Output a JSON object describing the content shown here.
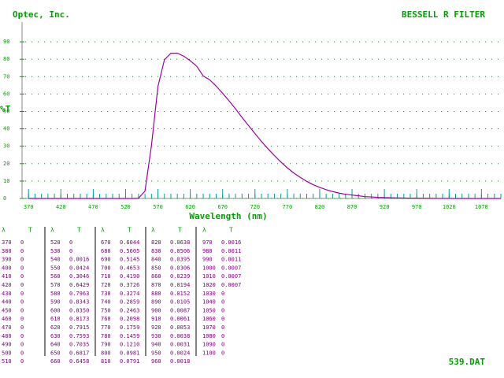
{
  "header": {
    "brand": "Optec, Inc."
  },
  "chart_data": {
    "type": "line",
    "title": "BESSELL R FILTER",
    "xlabel": "Wavelength (nm)",
    "ylabel": "%T",
    "x": [
      370,
      380,
      390,
      400,
      410,
      420,
      430,
      440,
      450,
      460,
      470,
      480,
      490,
      500,
      510,
      520,
      530,
      540,
      550,
      560,
      570,
      580,
      590,
      600,
      610,
      620,
      630,
      640,
      650,
      660,
      670,
      680,
      690,
      700,
      710,
      720,
      730,
      740,
      750,
      760,
      770,
      780,
      790,
      800,
      810,
      820,
      830,
      840,
      850,
      860,
      870,
      880,
      890,
      900,
      910,
      920,
      930,
      940,
      950,
      960,
      970,
      980,
      990,
      1000,
      1010,
      1020,
      1030,
      1040,
      1050,
      1060,
      1070,
      1080,
      1090,
      1100
    ],
    "series": [
      {
        "color": "#a000a0",
        "values": [
          0,
          0,
          0,
          0,
          0,
          0,
          0,
          0,
          0,
          0,
          0,
          0,
          0,
          0,
          0,
          0,
          0,
          0.16,
          4.24,
          30.46,
          64.29,
          79.63,
          83.43,
          83.5,
          81.73,
          79.15,
          75.93,
          70.35,
          68.17,
          64.58,
          60.44,
          56.05,
          51.45,
          46.53,
          41.9,
          37.26,
          32.74,
          28.59,
          24.63,
          20.98,
          17.59,
          14.59,
          12.1,
          9.81,
          7.91,
          6.38,
          5.06,
          3.95,
          3.06,
          2.39,
          1.94,
          1.52,
          1.05,
          0.87,
          0.61,
          0.53,
          0.38,
          0.31,
          0.24,
          0.18,
          0.16,
          0.11,
          0.11,
          0.07,
          0.07,
          0.07,
          0,
          0,
          0,
          0,
          0,
          0,
          0,
          0
        ]
      }
    ],
    "xlim": [
      360,
      1100
    ],
    "xticks": [
      370,
      420,
      470,
      520,
      570,
      620,
      670,
      720,
      770,
      820,
      870,
      920,
      970,
      1020,
      1070
    ],
    "ylim": [
      0,
      100
    ],
    "yticks": [
      0,
      10,
      20,
      30,
      40,
      50,
      60,
      70,
      80,
      90
    ],
    "grid": true
  },
  "table": {
    "header": [
      "λ",
      "T"
    ],
    "groups": [
      [
        [
          "370",
          "0"
        ],
        [
          "380",
          "0"
        ],
        [
          "390",
          "0"
        ],
        [
          "400",
          "0"
        ],
        [
          "410",
          "0"
        ],
        [
          "420",
          "0"
        ],
        [
          "430",
          "0"
        ],
        [
          "440",
          "0"
        ],
        [
          "450",
          "0"
        ],
        [
          "460",
          "0"
        ],
        [
          "470",
          "0"
        ],
        [
          "480",
          "0"
        ],
        [
          "490",
          "0"
        ],
        [
          "500",
          "0"
        ],
        [
          "510",
          "0"
        ]
      ],
      [
        [
          "520",
          "0"
        ],
        [
          "530",
          "0"
        ],
        [
          "540",
          "0.0016"
        ],
        [
          "550",
          "0.0424"
        ],
        [
          "560",
          "0.3046"
        ],
        [
          "570",
          "0.6429"
        ],
        [
          "580",
          "0.7963"
        ],
        [
          "590",
          "0.8343"
        ],
        [
          "600",
          "0.8350"
        ],
        [
          "610",
          "0.8173"
        ],
        [
          "620",
          "0.7915"
        ],
        [
          "630",
          "0.7593"
        ],
        [
          "640",
          "0.7035"
        ],
        [
          "650",
          "0.6817"
        ],
        [
          "660",
          "0.6458"
        ]
      ],
      [
        [
          "670",
          "0.6044"
        ],
        [
          "680",
          "0.5605"
        ],
        [
          "690",
          "0.5145"
        ],
        [
          "700",
          "0.4653"
        ],
        [
          "710",
          "0.4190"
        ],
        [
          "720",
          "0.3726"
        ],
        [
          "730",
          "0.3274"
        ],
        [
          "740",
          "0.2859"
        ],
        [
          "750",
          "0.2463"
        ],
        [
          "760",
          "0.2098"
        ],
        [
          "770",
          "0.1759"
        ],
        [
          "780",
          "0.1459"
        ],
        [
          "790",
          "0.1210"
        ],
        [
          "800",
          "0.0981"
        ],
        [
          "810",
          "0.0791"
        ]
      ],
      [
        [
          "820",
          "0.0638"
        ],
        [
          "830",
          "0.0506"
        ],
        [
          "840",
          "0.0395"
        ],
        [
          "850",
          "0.0306"
        ],
        [
          "860",
          "0.0239"
        ],
        [
          "870",
          "0.0194"
        ],
        [
          "880",
          "0.0152"
        ],
        [
          "890",
          "0.0105"
        ],
        [
          "900",
          "0.0087"
        ],
        [
          "910",
          "0.0061"
        ],
        [
          "920",
          "0.0053"
        ],
        [
          "930",
          "0.0038"
        ],
        [
          "940",
          "0.0031"
        ],
        [
          "950",
          "0.0024"
        ],
        [
          "960",
          "0.0018"
        ]
      ],
      [
        [
          "970",
          "0.0016"
        ],
        [
          "980",
          "0.0011"
        ],
        [
          "990",
          "0.0011"
        ],
        [
          "1000",
          "0.0007"
        ],
        [
          "1010",
          "0.0007"
        ],
        [
          "1020",
          "0.0007"
        ],
        [
          "1030",
          "0"
        ],
        [
          "1040",
          "0"
        ],
        [
          "1050",
          "0"
        ],
        [
          "1060",
          "0"
        ],
        [
          "1070",
          "0"
        ],
        [
          "1080",
          "0"
        ],
        [
          "1090",
          "0"
        ],
        [
          "1100",
          "0"
        ]
      ]
    ]
  },
  "footer": {
    "file": "539.DAT"
  }
}
